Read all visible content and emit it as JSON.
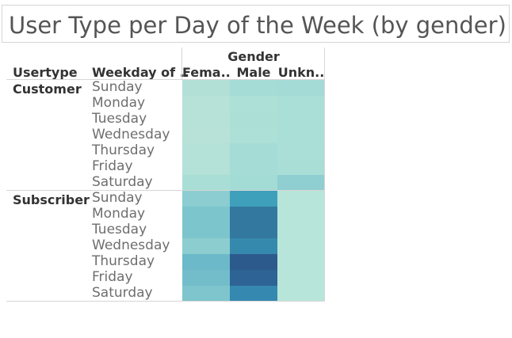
{
  "title": "User Type per Day of the Week (by gender)",
  "headers": {
    "gender": "Gender",
    "usertype": "Usertype",
    "weekday": "Weekday of ..",
    "columns": [
      "Fema..",
      "Male",
      "Unkn.."
    ]
  },
  "chart_data": {
    "type": "heatmap",
    "title": "User Type per Day of the Week (by gender)",
    "column_dimension": "Gender",
    "columns": [
      "Fema..",
      "Male",
      "Unkn.."
    ],
    "row_dimensions": [
      "Usertype",
      "Weekday of .."
    ],
    "groups": [
      {
        "usertype": "Customer",
        "days": [
          "Sunday",
          "Monday",
          "Tuesday",
          "Wednesday",
          "Thursday",
          "Friday",
          "Saturday"
        ],
        "colors": [
          [
            "#b2e0d7",
            "#a6dcd6",
            "#a4dbd6"
          ],
          [
            "#b6e2d8",
            "#ade0d7",
            "#aadfd7"
          ],
          [
            "#b6e2d8",
            "#ace0d7",
            "#aadfd7"
          ],
          [
            "#b8e2d8",
            "#ade0d7",
            "#aadfd7"
          ],
          [
            "#b4e1d8",
            "#a5dcd6",
            "#a9dfd7"
          ],
          [
            "#b4e1d8",
            "#a6dcd6",
            "#a8ded6"
          ],
          [
            "#a9ded6",
            "#a3dbd5",
            "#8fcfd1"
          ]
        ]
      },
      {
        "usertype": "Subscriber",
        "days": [
          "Sunday",
          "Monday",
          "Tuesday",
          "Wednesday",
          "Thursday",
          "Friday",
          "Saturday"
        ],
        "colors": [
          [
            "#8bcdd0",
            "#3fa0bc",
            "#b8e5d9"
          ],
          [
            "#7cc5cd",
            "#33789f",
            "#b8e5d9"
          ],
          [
            "#7cc5cd",
            "#33789f",
            "#b8e5d9"
          ],
          [
            "#8ccdd0",
            "#3589ad",
            "#b8e5d9"
          ],
          [
            "#6cb9c9",
            "#2d5a8c",
            "#b8e5d9"
          ],
          [
            "#73bdcb",
            "#2e6396",
            "#b8e5d9"
          ],
          [
            "#7ec5cd",
            "#3588b0",
            "#b8e5d9"
          ]
        ]
      }
    ]
  }
}
